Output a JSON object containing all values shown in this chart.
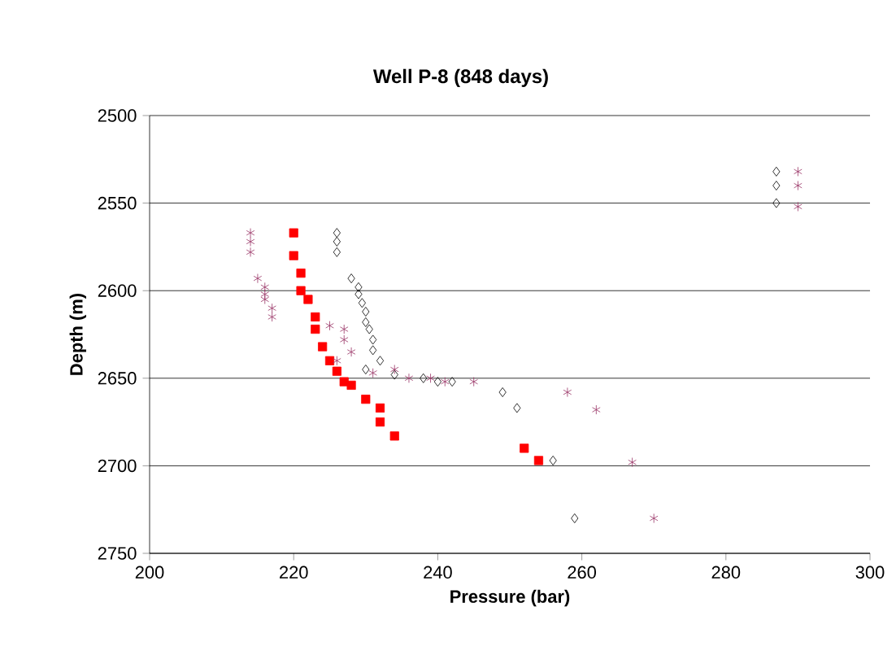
{
  "chart_data": {
    "type": "scatter",
    "title": "Well P-8 (848 days)",
    "xlabel": "Pressure (bar)",
    "ylabel": "Depth (m)",
    "xlim": [
      200,
      300
    ],
    "xticks": [
      200,
      220,
      240,
      260,
      280,
      300
    ],
    "ylim": [
      2750,
      2500
    ],
    "yticks": [
      2500,
      2550,
      2600,
      2650,
      2700,
      2750
    ],
    "grid": "y",
    "series": [
      {
        "color": "#ff0000",
        "marker": "square",
        "x": [
          220,
          220,
          221,
          221,
          222,
          223,
          223,
          224,
          225,
          226,
          227,
          228,
          230,
          232,
          232,
          234,
          252,
          254
        ],
        "values": [
          2567,
          2580,
          2590,
          2600,
          2605,
          2615,
          2622,
          2632,
          2640,
          2646,
          2652,
          2654,
          2662,
          2667,
          2675,
          2683,
          2690,
          2697
        ]
      },
      {
        "color": "#000000",
        "marker": "diamond",
        "x": [
          287,
          287,
          287,
          226,
          226,
          226,
          228,
          229,
          229,
          229.5,
          230,
          230,
          230.5,
          231,
          231,
          232,
          230,
          234,
          238,
          240,
          242,
          249,
          251,
          256,
          259
        ],
        "values": [
          2532,
          2540,
          2550,
          2567,
          2572,
          2578,
          2593,
          2598,
          2602,
          2607,
          2612,
          2618,
          2622,
          2628,
          2634,
          2640,
          2645,
          2648,
          2650,
          2652,
          2652,
          2658,
          2667,
          2697,
          2730
        ]
      },
      {
        "color": "#993366",
        "marker": "cross",
        "x": [
          290,
          290,
          290,
          214,
          214,
          214,
          215,
          216,
          216,
          217,
          217,
          216,
          225,
          227,
          227,
          228,
          226,
          231,
          234,
          236,
          239,
          241,
          245,
          258,
          262,
          267,
          270
        ],
        "values": [
          2532,
          2540,
          2552,
          2567,
          2572,
          2578,
          2593,
          2598,
          2605,
          2610,
          2615,
          2602,
          2620,
          2622,
          2628,
          2635,
          2640,
          2647,
          2645,
          2650,
          2650,
          2652,
          2652,
          2658,
          2668,
          2698,
          2730
        ]
      }
    ]
  }
}
